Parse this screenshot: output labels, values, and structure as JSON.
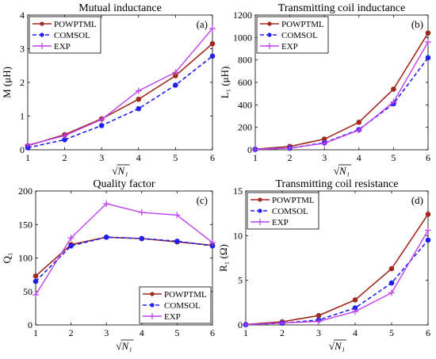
{
  "colors": {
    "powptml": "#A0291D",
    "comsol": "#1F1FEE",
    "exp": "#C040F0"
  },
  "chart_data": [
    {
      "panel": "a",
      "type": "line",
      "title": "Mutual inductance",
      "panel_label": "(a)",
      "xlabel": "√N₁",
      "ylabel": "M (μH)",
      "x": [
        1,
        2,
        3,
        4,
        5,
        6
      ],
      "xlim": [
        1,
        6
      ],
      "ylim": [
        0,
        4
      ],
      "xticks": [
        1,
        2,
        3,
        4,
        5,
        6
      ],
      "yticks": [
        0,
        1,
        2,
        3,
        4
      ],
      "legend": "top-left",
      "grid": false,
      "series": [
        {
          "name": "POWPTML",
          "values": [
            0.12,
            0.45,
            0.92,
            1.5,
            2.2,
            3.15
          ]
        },
        {
          "name": "COMSOL",
          "values": [
            0.06,
            0.3,
            0.72,
            1.22,
            1.92,
            2.78
          ]
        },
        {
          "name": "EXP",
          "values": [
            0.14,
            0.42,
            0.9,
            1.75,
            2.3,
            3.6
          ]
        }
      ]
    },
    {
      "panel": "b",
      "type": "line",
      "title": "Transmitting coil inductance",
      "panel_label": "(b)",
      "xlabel": "√N₁",
      "ylabel": "L₁ (μH)",
      "x": [
        1,
        2,
        3,
        4,
        5,
        6
      ],
      "xlim": [
        1,
        6
      ],
      "ylim": [
        0,
        1200
      ],
      "xticks": [
        1,
        2,
        3,
        4,
        5,
        6
      ],
      "yticks": [
        0,
        200,
        400,
        600,
        800,
        1000,
        1200
      ],
      "legend": "top-left",
      "grid": false,
      "series": [
        {
          "name": "POWPTML",
          "values": [
            5,
            30,
            95,
            245,
            540,
            1040
          ]
        },
        {
          "name": "COMSOL",
          "values": [
            3,
            15,
            62,
            180,
            410,
            820
          ]
        },
        {
          "name": "EXP",
          "values": [
            3,
            15,
            58,
            175,
            425,
            960
          ]
        }
      ]
    },
    {
      "panel": "c",
      "type": "line",
      "title": "Quality factor",
      "panel_label": "(c)",
      "xlabel": "√N₁",
      "ylabel": "Q₁",
      "x": [
        1,
        2,
        3,
        4,
        5,
        6
      ],
      "xlim": [
        1,
        6
      ],
      "ylim": [
        0,
        200
      ],
      "xticks": [
        1,
        2,
        3,
        4,
        5,
        6
      ],
      "yticks": [
        0,
        50,
        100,
        150,
        200
      ],
      "legend": "bottom-right",
      "grid": false,
      "series": [
        {
          "name": "POWPTML",
          "values": [
            73,
            120,
            131,
            129,
            124,
            119
          ]
        },
        {
          "name": "COMSOL",
          "values": [
            65,
            118,
            131,
            129,
            125,
            118
          ]
        },
        {
          "name": "EXP",
          "values": [
            45,
            130,
            181,
            168,
            164,
            123
          ]
        }
      ]
    },
    {
      "panel": "d",
      "type": "line",
      "title": "Transmitting coil resistance",
      "panel_label": "(d)",
      "xlabel": "√N₁",
      "ylabel": "R₁ (Ω)",
      "x": [
        1,
        2,
        3,
        4,
        5,
        6
      ],
      "xlim": [
        1,
        6
      ],
      "ylim": [
        0,
        15
      ],
      "xticks": [
        1,
        2,
        3,
        4,
        5,
        6
      ],
      "yticks": [
        0,
        5,
        10,
        15
      ],
      "legend": "top-left",
      "grid": false,
      "series": [
        {
          "name": "POWPTML",
          "values": [
            0.05,
            0.35,
            1.05,
            2.8,
            6.3,
            12.4
          ]
        },
        {
          "name": "COMSOL",
          "values": [
            0.03,
            0.2,
            0.55,
            1.9,
            4.7,
            9.5
          ]
        },
        {
          "name": "EXP",
          "values": [
            0.04,
            0.22,
            0.4,
            1.5,
            3.6,
            10.6
          ]
        }
      ]
    }
  ]
}
